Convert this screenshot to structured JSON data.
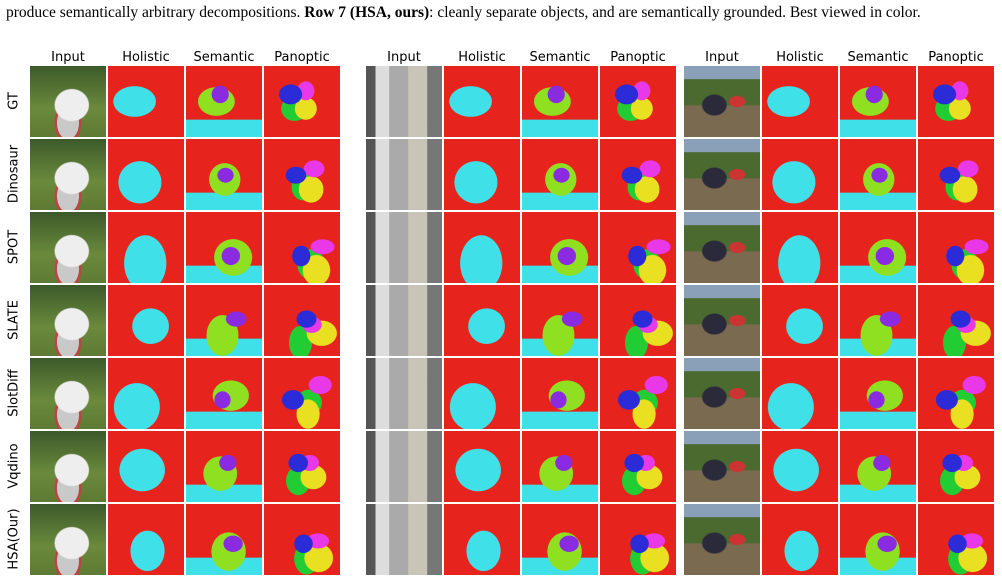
{
  "caption": {
    "text_before": "produce semantically arbitrary decompositions. ",
    "bold": "Row 7 (HSA, ours)",
    "text_after": ": cleanly separate objects, and are semantically grounded. Best viewed in color."
  },
  "panels": [
    {
      "columns": [
        "Input",
        "Holistic",
        "Semantic",
        "Panoptic"
      ]
    },
    {
      "columns": [
        "Input",
        "Holistic",
        "Semantic",
        "Panoptic"
      ]
    },
    {
      "columns": [
        "Input",
        "Holistic",
        "Semantic",
        "Panoptic"
      ]
    }
  ],
  "rows": [
    "GT",
    "Dinosaur",
    "SPOT",
    "SLATE",
    "SlotDiff",
    "Vqdino",
    "HSA(Our)"
  ]
}
